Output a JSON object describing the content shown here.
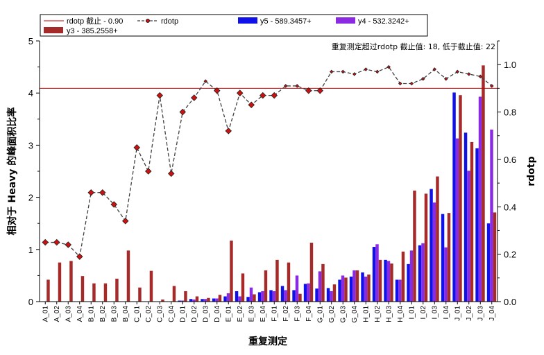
{
  "chart_data": {
    "type": "bar",
    "xlabel": "重复测定",
    "ylabel_left": "相对于 Heavy 的峰面积比率",
    "ylabel_right": "rdotp",
    "ylim_left": [
      0,
      5
    ],
    "ylim_right": [
      0,
      1.1
    ],
    "yticks_left": [
      "0",
      "1",
      "2",
      "3",
      "4",
      "5"
    ],
    "yticks_right": [
      "0.0",
      "0.2",
      "0.4",
      "0.6",
      "0.8",
      "1.0"
    ],
    "categories": [
      "A_01",
      "A_02",
      "A_03",
      "A_04",
      "B_01",
      "B_02",
      "B_03",
      "B_04",
      "C_01",
      "C_02",
      "C_03",
      "C_04",
      "D_01",
      "D_02",
      "D_03",
      "D_04",
      "E_01",
      "E_02",
      "E_03",
      "E_04",
      "F_01",
      "F_02",
      "F_03",
      "F_04",
      "G_01",
      "G_02",
      "G_03",
      "G_04",
      "H_01",
      "H_02",
      "H_03",
      "H_04",
      "I_01",
      "I_02",
      "I_03",
      "I_04",
      "J_01",
      "J_02",
      "J_03",
      "J_04"
    ],
    "annotation": "重复测定超过rdotp 截止值: 18, 低于截止值: 22",
    "cutoff": 0.9,
    "legend": {
      "cutoff_label": "rdotp 截止 - 0.90",
      "rdotp_label": "rdotp",
      "y5_label": "y5 - 589.3457+",
      "y4_label": "y4 - 532.3242+",
      "y3_label": "y3 - 385.2558+"
    },
    "series": [
      {
        "name": "y5 - 589.3457+",
        "color": "#1010e8",
        "values": [
          0,
          0,
          0,
          0,
          0,
          0,
          0,
          0,
          0,
          0,
          0,
          0,
          0.02,
          0.05,
          0.05,
          0.06,
          0.1,
          0.2,
          0.09,
          0.18,
          0.22,
          0.3,
          0.22,
          0.34,
          0.25,
          0.26,
          0.42,
          0.48,
          0.56,
          1.05,
          0.8,
          0.42,
          0.72,
          1.08,
          2.16,
          1.68,
          4.01,
          3.24,
          2.94,
          1.5
        ]
      },
      {
        "name": "y4 - 532.3242+",
        "color": "#8a2be2",
        "values": [
          0,
          0,
          0,
          0,
          0,
          0,
          0,
          0,
          0,
          0,
          0,
          0,
          0.02,
          0.04,
          0.05,
          0.06,
          0.16,
          0.1,
          0.27,
          0.2,
          0.2,
          0.22,
          0.5,
          0.35,
          0.58,
          0.2,
          0.5,
          0.6,
          0.48,
          1.1,
          0.78,
          0.42,
          0.98,
          1.12,
          1.9,
          1.04,
          3.13,
          2.51,
          3.93,
          3.3
        ]
      },
      {
        "name": "y3 - 385.2558+",
        "color": "#a52a2a",
        "values": [
          0.42,
          0.75,
          0.78,
          0.49,
          0.35,
          0.35,
          0.44,
          0.98,
          0.27,
          0.59,
          0.04,
          0.3,
          0.2,
          0.1,
          0.07,
          0.13,
          1.17,
          0.54,
          0.14,
          0.6,
          0.8,
          0.75,
          0.15,
          1.13,
          0.72,
          0.33,
          0.46,
          0.6,
          0.52,
          0.8,
          0.73,
          0.96,
          2.13,
          2.07,
          2.4,
          1.7,
          3.96,
          3.06,
          4.53,
          1.71
        ]
      }
    ],
    "rdotp": {
      "name": "rdotp",
      "color": "#404040",
      "values": [
        0.25,
        0.25,
        0.24,
        0.19,
        0.46,
        0.46,
        0.41,
        0.34,
        0.65,
        0.55,
        0.87,
        0.54,
        0.8,
        0.86,
        0.93,
        0.89,
        0.72,
        0.88,
        0.83,
        0.87,
        0.87,
        0.91,
        0.91,
        0.89,
        0.89,
        0.97,
        0.97,
        0.96,
        0.98,
        0.97,
        0.99,
        0.92,
        0.92,
        0.94,
        0.98,
        0.94,
        0.97,
        0.96,
        0.95,
        0.91
      ]
    },
    "marker_color": "#cc1111"
  }
}
